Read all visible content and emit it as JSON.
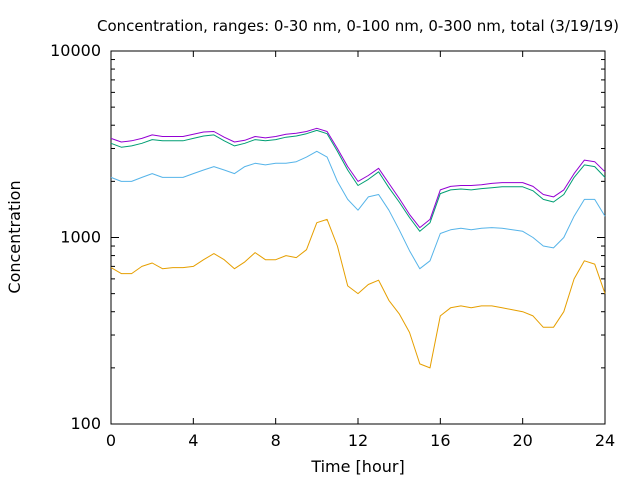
{
  "chart_data": {
    "type": "line",
    "title": "Concentration, ranges: 0-30 nm, 0-100 nm, 0-300 nm, total (3/19/19)",
    "xlabel": "Time [hour]",
    "ylabel": "Concentration",
    "xlim": [
      0,
      24
    ],
    "ylim": [
      100,
      10000
    ],
    "yscale": "log",
    "grid": false,
    "x_ticks": [
      {
        "value": 0,
        "label": "0"
      },
      {
        "value": 4,
        "label": "4"
      },
      {
        "value": 8,
        "label": "8"
      },
      {
        "value": 12,
        "label": "12"
      },
      {
        "value": 16,
        "label": "16"
      },
      {
        "value": 20,
        "label": "20"
      },
      {
        "value": 24,
        "label": "24"
      }
    ],
    "y_ticks": [
      {
        "value": 100,
        "label": "100"
      },
      {
        "value": 1000,
        "label": "1000"
      },
      {
        "value": 10000,
        "label": "10000"
      }
    ],
    "x": [
      0,
      0.5,
      1,
      1.5,
      2,
      2.5,
      3,
      3.5,
      4,
      4.5,
      5,
      5.5,
      6,
      6.5,
      7,
      7.5,
      8,
      8.5,
      9,
      9.5,
      10,
      10.5,
      11,
      11.5,
      12,
      12.5,
      13,
      13.5,
      14,
      14.5,
      15,
      15.5,
      16,
      16.5,
      17,
      17.5,
      18,
      18.5,
      19,
      19.5,
      20,
      20.5,
      21,
      21.5,
      22,
      22.5,
      23,
      23.5,
      24
    ],
    "series": [
      {
        "color": "#e69f00",
        "values": [
          690,
          640,
          640,
          700,
          730,
          680,
          690,
          690,
          700,
          760,
          820,
          760,
          680,
          740,
          830,
          760,
          760,
          800,
          780,
          860,
          1200,
          1250,
          900,
          550,
          500,
          560,
          590,
          460,
          390,
          310,
          210,
          200,
          380,
          420,
          430,
          420,
          430,
          430,
          420,
          410,
          400,
          380,
          330,
          330,
          400,
          600,
          750,
          720,
          500
        ]
      },
      {
        "color": "#56b4e9",
        "values": [
          2100,
          2000,
          2000,
          2100,
          2200,
          2100,
          2100,
          2100,
          2200,
          2300,
          2400,
          2300,
          2200,
          2400,
          2500,
          2450,
          2500,
          2500,
          2550,
          2700,
          2900,
          2700,
          2000,
          1600,
          1400,
          1650,
          1700,
          1400,
          1100,
          850,
          680,
          750,
          1050,
          1100,
          1120,
          1100,
          1120,
          1130,
          1120,
          1100,
          1080,
          1000,
          900,
          880,
          1000,
          1300,
          1600,
          1600,
          1300
        ]
      },
      {
        "color": "#009e73",
        "values": [
          3200,
          3050,
          3100,
          3200,
          3350,
          3300,
          3300,
          3300,
          3400,
          3500,
          3550,
          3300,
          3100,
          3200,
          3350,
          3300,
          3350,
          3450,
          3500,
          3600,
          3750,
          3600,
          2900,
          2300,
          1900,
          2050,
          2250,
          1850,
          1550,
          1280,
          1080,
          1200,
          1720,
          1800,
          1820,
          1800,
          1830,
          1850,
          1870,
          1870,
          1870,
          1780,
          1600,
          1550,
          1700,
          2100,
          2450,
          2400,
          2100
        ]
      },
      {
        "color": "#9400d3",
        "values": [
          3400,
          3250,
          3300,
          3400,
          3550,
          3480,
          3480,
          3480,
          3580,
          3680,
          3700,
          3450,
          3250,
          3320,
          3480,
          3420,
          3480,
          3580,
          3620,
          3700,
          3850,
          3700,
          3000,
          2400,
          2000,
          2150,
          2350,
          1950,
          1620,
          1330,
          1130,
          1250,
          1800,
          1880,
          1900,
          1900,
          1920,
          1950,
          1970,
          1970,
          1970,
          1880,
          1700,
          1650,
          1800,
          2200,
          2600,
          2550,
          2250
        ]
      }
    ]
  }
}
